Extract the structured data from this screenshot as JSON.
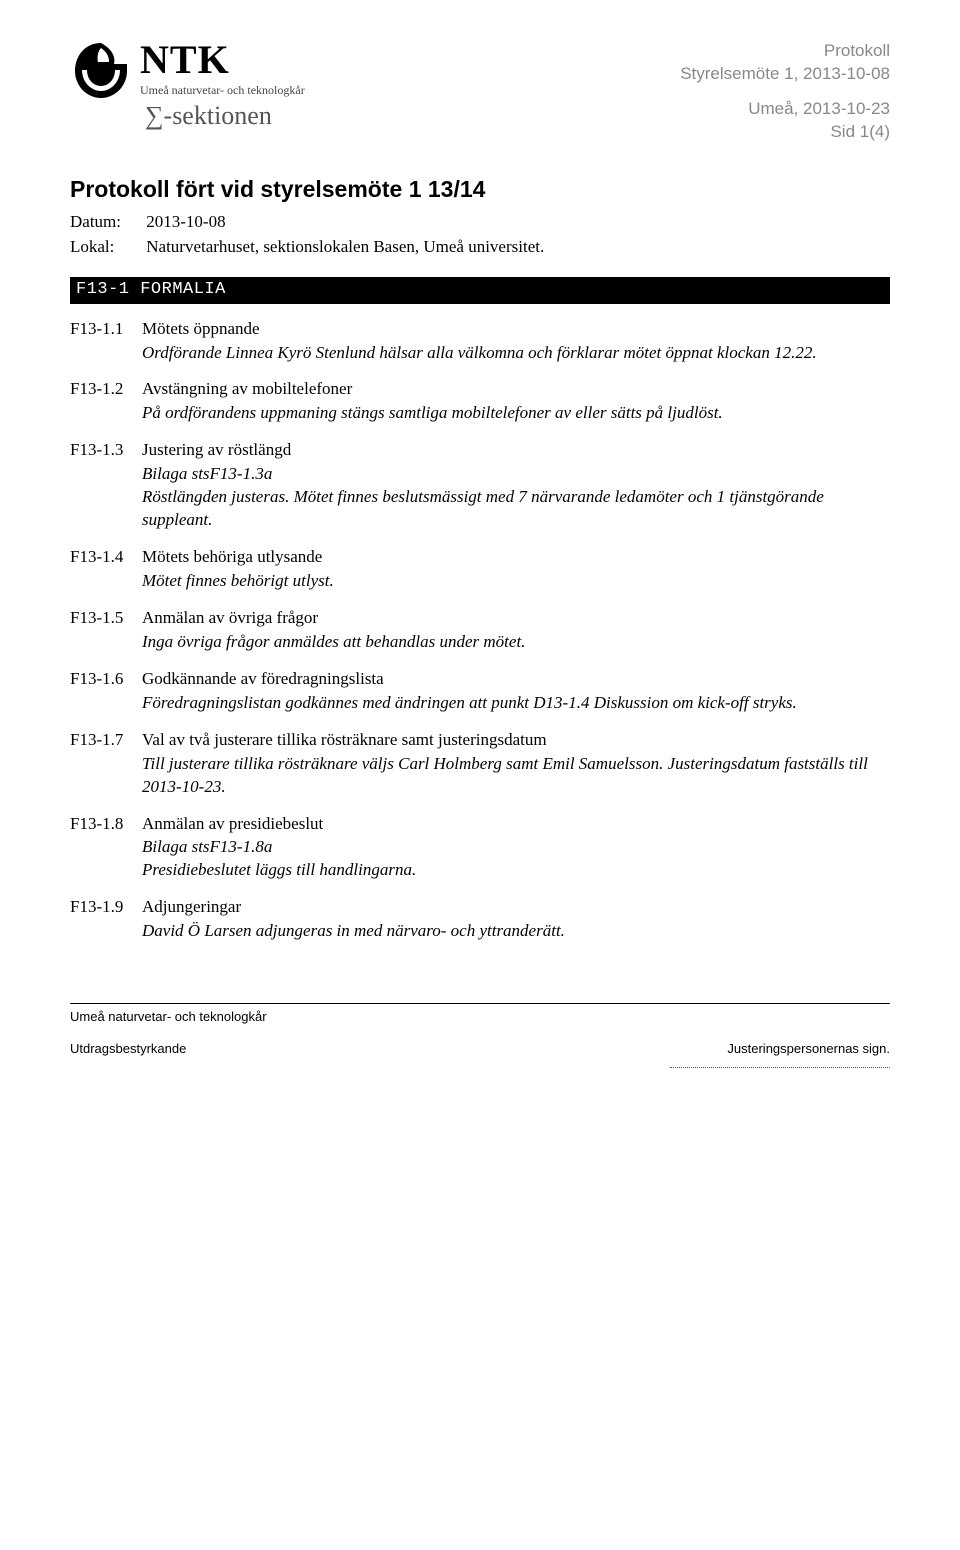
{
  "header": {
    "logo_main": "NTK",
    "logo_sub": "Umeå naturvetar- och teknologkår",
    "section_name": "∑-sektionen",
    "meta1": "Protokoll",
    "meta2": "Styrelsemöte 1, 2013-10-08",
    "meta3": "Umeå, 2013-10-23",
    "meta4": "Sid 1(4)"
  },
  "title": "Protokoll fört vid styrelsemöte 1 13/14",
  "meta": {
    "date_label": "Datum:",
    "date_value": "2013-10-08",
    "place_label": "Lokal:",
    "place_value": "Naturvetarhuset, sektionslokalen Basen, Umeå universitet."
  },
  "section_bar": "F13-1 FORMALIA",
  "items": [
    {
      "id": "F13-1.1",
      "title": "Mötets öppnande",
      "text": "Ordförande Linnea Kyrö Stenlund hälsar alla välkomna och förklarar mötet öppnat klockan 12.22."
    },
    {
      "id": "F13-1.2",
      "title": "Avstängning av mobiltelefoner",
      "text": "På ordförandens uppmaning stängs samtliga mobiltelefoner av eller sätts på ljudlöst."
    },
    {
      "id": "F13-1.3",
      "title": "Justering av röstlängd",
      "text": "Bilaga stsF13-1.3a\nRöstlängden justeras. Mötet finnes beslutsmässigt med 7 närvarande ledamöter och 1 tjänstgörande suppleant."
    },
    {
      "id": "F13-1.4",
      "title": "Mötets behöriga utlysande",
      "text": "Mötet finnes behörigt utlyst."
    },
    {
      "id": "F13-1.5",
      "title": "Anmälan av övriga frågor",
      "text": "Inga övriga frågor anmäldes att behandlas under mötet."
    },
    {
      "id": "F13-1.6",
      "title": "Godkännande av föredragningslista",
      "text": "Föredragningslistan godkännes med ändringen att punkt D13-1.4 Diskussion om kick-off stryks."
    },
    {
      "id": "F13-1.7",
      "title": "Val av två justerare tillika rösträknare samt justeringsdatum",
      "text": "Till justerare tillika rösträknare väljs Carl Holmberg samt Emil Samuelsson. Justeringsdatum fastställs till 2013-10-23."
    },
    {
      "id": "F13-1.8",
      "title": "Anmälan av presidiebeslut",
      "text": "Bilaga stsF13-1.8a\nPresidiebeslutet läggs till handlingarna."
    },
    {
      "id": "F13-1.9",
      "title": "Adjungeringar",
      "text": "David Ö Larsen adjungeras in med närvaro- och yttranderätt."
    }
  ],
  "footer": {
    "org": "Umeå naturvetar- och teknologkår",
    "left": "Utdragsbestyrkande",
    "right": "Justeringspersonernas sign."
  }
}
